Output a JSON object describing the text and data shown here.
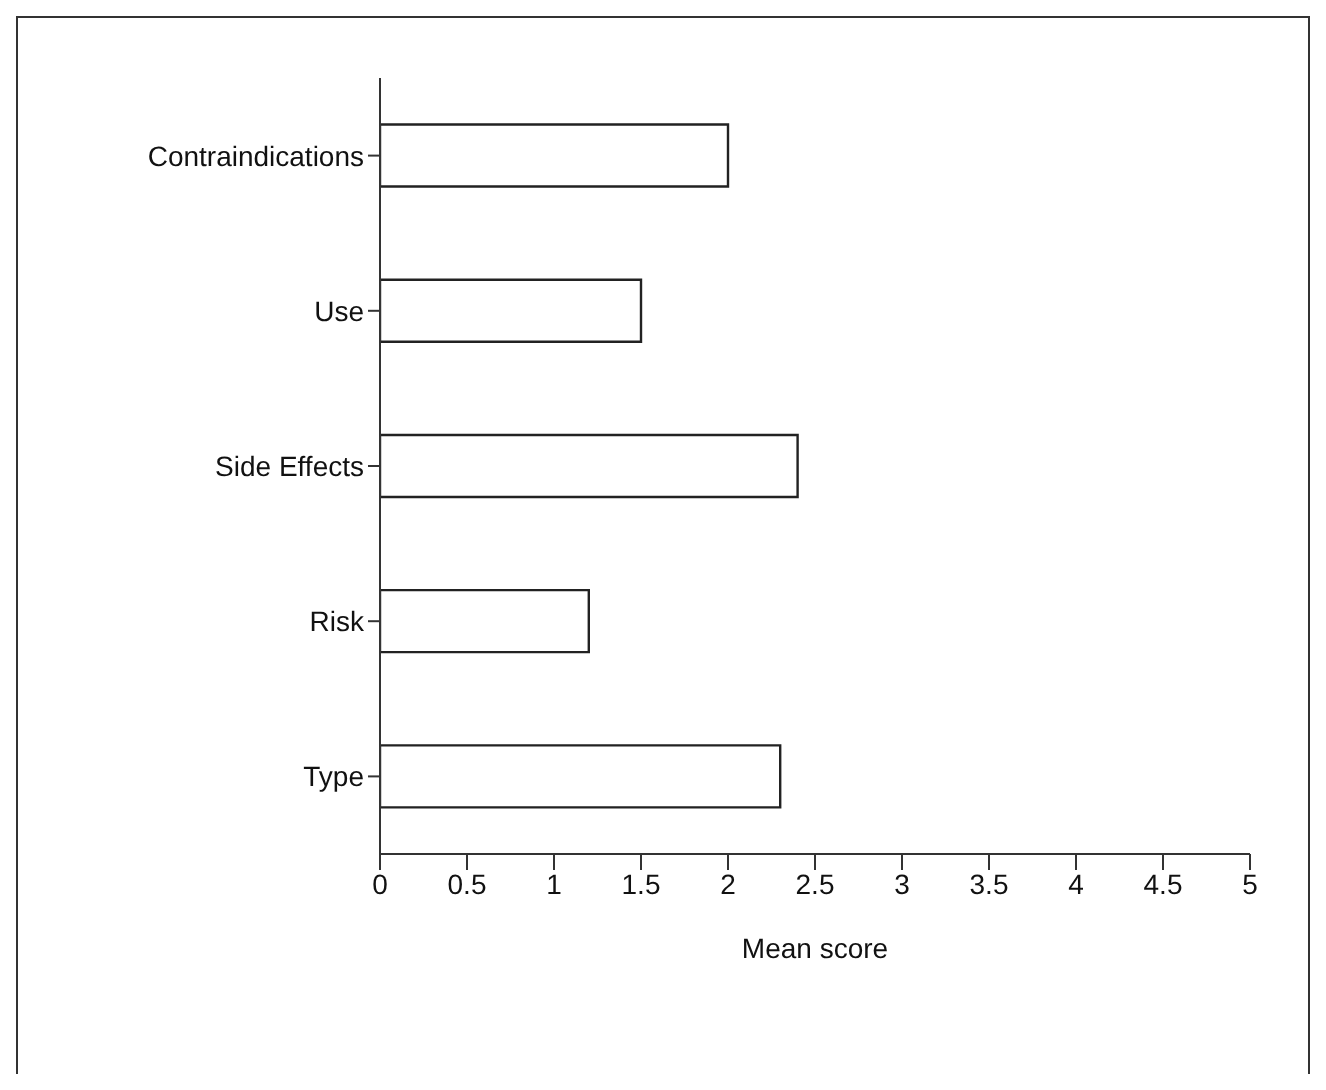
{
  "chart_data": {
    "type": "bar",
    "orientation": "horizontal",
    "xlabel": "Mean score",
    "categories": [
      "Contraindications",
      "Use",
      "Side Effects",
      "Risk",
      "Type"
    ],
    "values": [
      2.0,
      1.5,
      2.4,
      1.2,
      2.3
    ],
    "color": "#ffffff",
    "xlim": [
      0,
      5
    ],
    "xticks": [
      0,
      0.5,
      1,
      1.5,
      2,
      2.5,
      3,
      3.5,
      4,
      4.5,
      5
    ]
  }
}
